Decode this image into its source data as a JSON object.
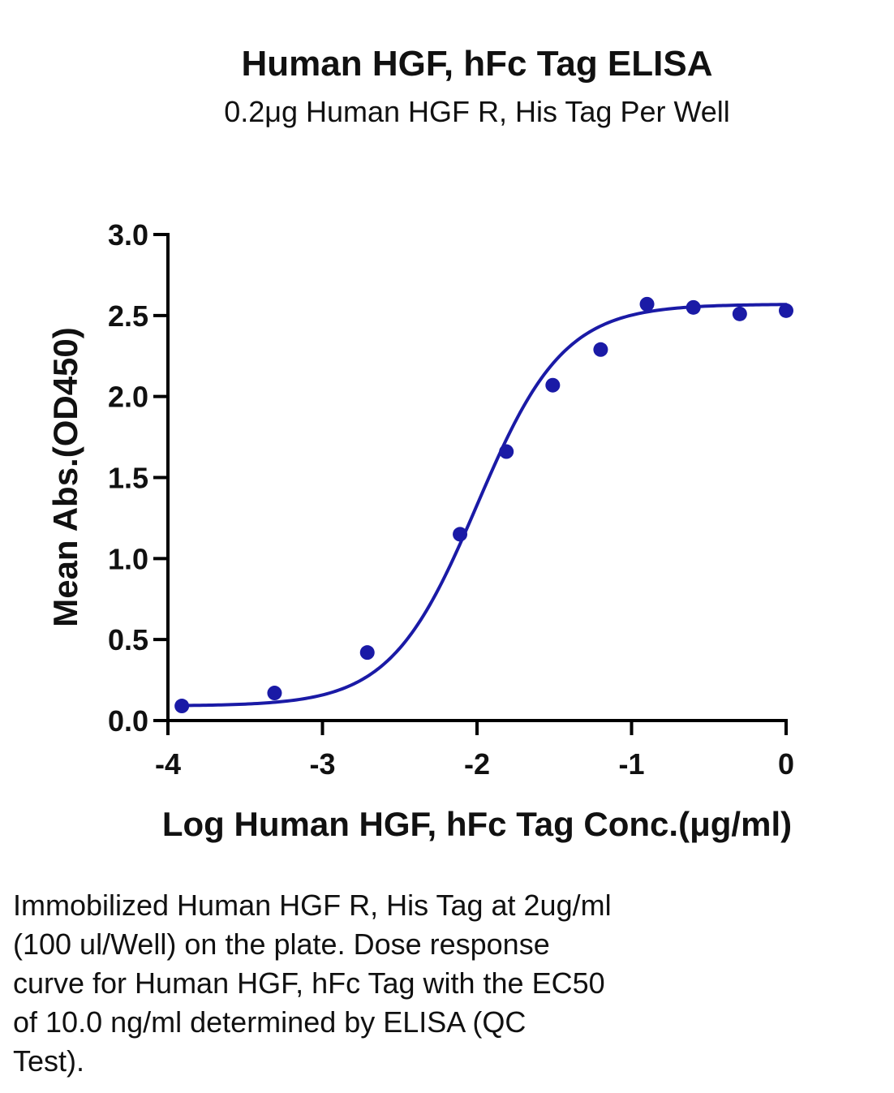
{
  "chart_data": {
    "type": "scatter",
    "title": "Human HGF, hFc Tag ELISA",
    "subtitle": "0.2μg Human HGF R, His Tag Per Well",
    "xlabel": "Log Human HGF, hFc Tag Conc.(μg/ml)",
    "ylabel": "Mean Abs.(OD450)",
    "xlim": [
      -4,
      0
    ],
    "ylim": [
      0,
      3.0
    ],
    "x_ticks": [
      -4,
      -3,
      -2,
      -1,
      0
    ],
    "x_tick_labels": [
      "-4",
      "-3",
      "-2",
      "-1",
      "0"
    ],
    "y_ticks": [
      0,
      0.5,
      1.0,
      1.5,
      2.0,
      2.5,
      3.0
    ],
    "y_tick_labels": [
      "0.0",
      "0.5",
      "1.0",
      "1.5",
      "2.0",
      "2.5",
      "3.0"
    ],
    "grid": false,
    "series": [
      {
        "color": "#1a1aa6",
        "x": [
          -3.91,
          -3.31,
          -2.71,
          -2.11,
          -1.81,
          -1.51,
          -1.2,
          -0.9,
          -0.6,
          -0.3,
          0.0
        ],
        "y": [
          0.09,
          0.17,
          0.42,
          1.15,
          1.66,
          2.07,
          2.29,
          2.57,
          2.55,
          2.51,
          2.53
        ]
      }
    ],
    "fit": {
      "model": "4PL",
      "bottom": 0.09,
      "top": 2.57,
      "log_ec50": -2.0,
      "hill": 1.55,
      "color": "#1a1aa6"
    }
  },
  "caption": {
    "lines": [
      "Immobilized Human HGF R, His Tag at 2ug/ml",
      "(100 ul/Well) on the plate. Dose response",
      "curve for Human HGF, hFc Tag with the EC50",
      "of 10.0 ng/ml determined by ELISA (QC",
      "Test)."
    ]
  }
}
